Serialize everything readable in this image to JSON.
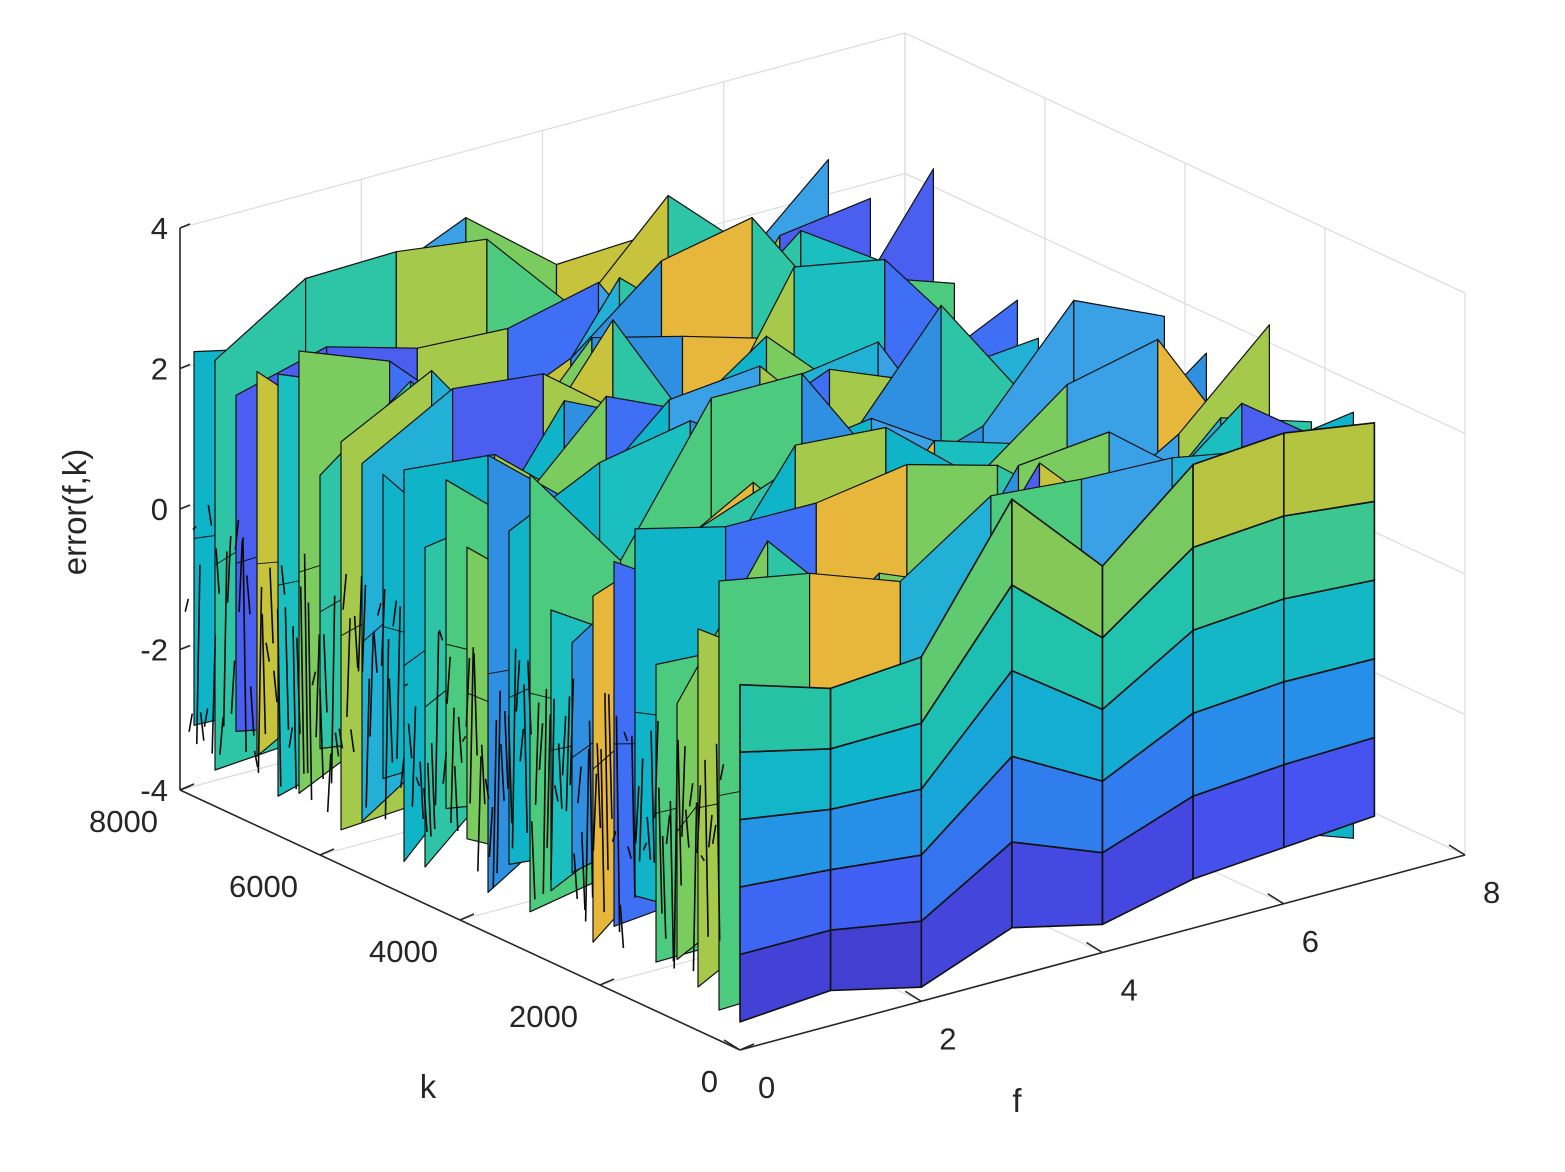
{
  "chart_data": {
    "type": "surface",
    "xlabel": "f",
    "ylabel": "k",
    "zlabel": "error(f,k)",
    "xlim": [
      0,
      8
    ],
    "ylim": [
      0,
      8000
    ],
    "zlim": [
      -4,
      4
    ],
    "x_ticks": [
      "0",
      "2",
      "4",
      "6",
      "8"
    ],
    "y_ticks": [
      "0",
      "2000",
      "4000",
      "6000",
      "8000"
    ],
    "z_ticks": [
      "-4",
      "-2",
      "0",
      "2",
      "4"
    ],
    "grid": true,
    "colormap": "parula",
    "edge_color": "#000000",
    "front_slice": {
      "k": 0,
      "f": [
        0,
        1,
        2,
        3,
        4,
        5,
        6,
        7
      ],
      "error_top": [
        1.2,
        0.8,
        0.9,
        2.8,
        1.5,
        2.6,
        2.7,
        2.5
      ],
      "error_bottom": [
        -3.6,
        -3.5,
        -3.8,
        -3.3,
        -3.6,
        -3.3,
        -3.2,
        -3.1
      ]
    }
  }
}
